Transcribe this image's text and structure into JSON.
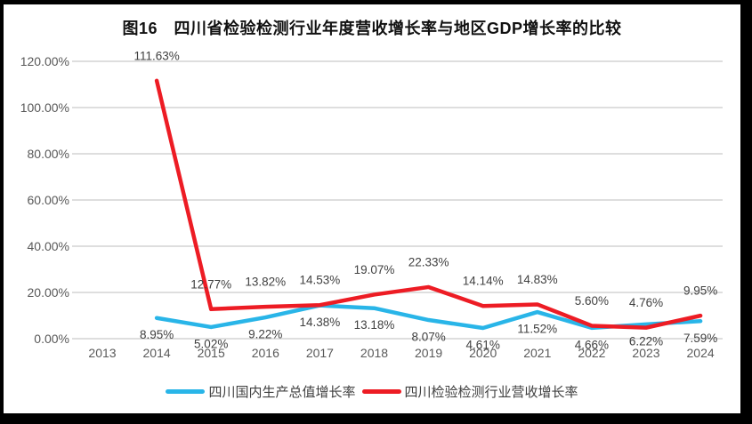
{
  "colors": {
    "frame_bg": "#000000",
    "canvas_bg": "#ffffff",
    "gridline": "#d9d9d9",
    "axis_text": "#595959",
    "data_label": "#404040",
    "title_text": "#111111",
    "series_blue": "#29b5e8",
    "series_red": "#ed1c24"
  },
  "chart_data": {
    "type": "line",
    "title": "图16　四川省检验检测行业年度营收增长率与地区GDP增长率的比较",
    "categories": [
      "2013",
      "2014",
      "2015",
      "2016",
      "2017",
      "2018",
      "2019",
      "2020",
      "2021",
      "2022",
      "2023",
      "2024"
    ],
    "series": [
      {
        "name": "四川国内生产总值增长率",
        "color": "#29b5e8",
        "label_position": "below",
        "values": [
          null,
          8.95,
          5.02,
          9.22,
          14.38,
          13.18,
          8.07,
          4.61,
          11.52,
          4.66,
          6.22,
          7.59
        ]
      },
      {
        "name": "四川检验检测行业营收增长率",
        "color": "#ed1c24",
        "label_position": "above",
        "values": [
          null,
          111.63,
          12.77,
          13.82,
          14.53,
          19.07,
          22.33,
          14.14,
          14.83,
          5.6,
          4.76,
          9.95
        ]
      }
    ],
    "ylim": [
      0,
      120
    ],
    "ytick_step": 20,
    "ytick_labels": [
      "120.00%",
      "100.00%",
      "80.00%",
      "60.00%",
      "40.00%",
      "20.00%",
      "0.00%"
    ],
    "value_suffix": "%",
    "grid": true,
    "data_labels": true,
    "legend_position": "bottom"
  }
}
